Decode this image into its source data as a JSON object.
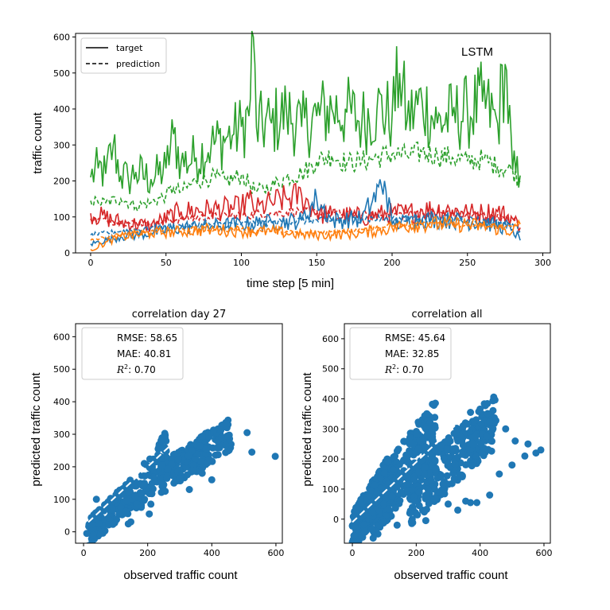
{
  "chart_data": [
    {
      "type": "line",
      "title": "LSTM",
      "xlabel": "time step [5 min]",
      "ylabel": "traffic count",
      "xlim": [
        -10,
        305
      ],
      "ylim": [
        0,
        610
      ],
      "xticks": [
        0,
        50,
        100,
        150,
        200,
        250,
        300
      ],
      "yticks": [
        0,
        100,
        200,
        300,
        400,
        500,
        600
      ],
      "legend": {
        "position": "top-left",
        "entries": [
          {
            "label": "target",
            "style": "solid"
          },
          {
            "label": "prediction",
            "style": "dashed"
          }
        ]
      },
      "colors": {
        "blue": "#1f77b4",
        "orange": "#ff7f0e",
        "green": "#2ca02c",
        "red": "#d62728"
      },
      "series": [
        {
          "name": "green target",
          "color": "#2ca02c",
          "style": "solid",
          "x": [
            0,
            5,
            10,
            15,
            20,
            25,
            30,
            40,
            50,
            55,
            60,
            70,
            80,
            90,
            95,
            100,
            105,
            108,
            110,
            120,
            130,
            140,
            150,
            160,
            170,
            180,
            190,
            200,
            205,
            210,
            220,
            230,
            240,
            250,
            260,
            270,
            275,
            280,
            285
          ],
          "y": [
            210,
            235,
            220,
            300,
            215,
            205,
            225,
            205,
            235,
            330,
            250,
            265,
            300,
            320,
            330,
            350,
            380,
            600,
            350,
            360,
            390,
            350,
            380,
            400,
            390,
            365,
            400,
            380,
            500,
            370,
            420,
            360,
            380,
            390,
            420,
            360,
            525,
            230,
            215
          ]
        },
        {
          "name": "green prediction",
          "color": "#2ca02c",
          "style": "dashed",
          "x": [
            0,
            5,
            10,
            20,
            30,
            40,
            50,
            55,
            60,
            70,
            80,
            90,
            100,
            110,
            120,
            130,
            140,
            150,
            160,
            170,
            180,
            190,
            200,
            210,
            220,
            230,
            240,
            250,
            260,
            270,
            280,
            285
          ],
          "y": [
            145,
            140,
            140,
            150,
            130,
            140,
            160,
            180,
            170,
            200,
            210,
            200,
            215,
            170,
            185,
            210,
            220,
            255,
            270,
            250,
            255,
            265,
            275,
            270,
            280,
            270,
            265,
            255,
            260,
            240,
            230,
            195
          ]
        },
        {
          "name": "red target",
          "color": "#d62728",
          "style": "solid",
          "x": [
            0,
            20,
            40,
            60,
            80,
            100,
            105,
            110,
            120,
            130,
            140,
            150,
            160,
            180,
            200,
            210,
            220,
            240,
            250,
            260,
            270,
            280,
            285
          ],
          "y": [
            110,
            85,
            75,
            115,
            120,
            125,
            150,
            120,
            140,
            150,
            160,
            110,
            105,
            100,
            110,
            110,
            120,
            120,
            110,
            110,
            115,
            95,
            70
          ]
        },
        {
          "name": "red prediction",
          "color": "#d62728",
          "style": "dashed",
          "x": [
            0,
            20,
            40,
            60,
            80,
            100,
            120,
            140,
            160,
            180,
            200,
            220,
            240,
            260,
            280,
            285
          ],
          "y": [
            95,
            85,
            80,
            95,
            100,
            105,
            110,
            115,
            110,
            105,
            105,
            110,
            110,
            105,
            90,
            75
          ]
        },
        {
          "name": "blue target",
          "color": "#1f77b4",
          "style": "solid",
          "x": [
            0,
            20,
            40,
            60,
            80,
            100,
            120,
            140,
            150,
            160,
            180,
            195,
            200,
            220,
            240,
            260,
            280,
            285
          ],
          "y": [
            25,
            45,
            55,
            70,
            75,
            80,
            85,
            90,
            150,
            90,
            95,
            200,
            80,
            95,
            90,
            85,
            65,
            35
          ]
        },
        {
          "name": "blue prediction",
          "color": "#1f77b4",
          "style": "dashed",
          "x": [
            0,
            20,
            40,
            60,
            80,
            100,
            120,
            140,
            160,
            180,
            200,
            220,
            240,
            260,
            280,
            285
          ],
          "y": [
            50,
            60,
            70,
            75,
            80,
            80,
            85,
            90,
            90,
            95,
            95,
            95,
            95,
            90,
            80,
            60
          ]
        },
        {
          "name": "orange target",
          "color": "#ff7f0e",
          "style": "solid",
          "x": [
            0,
            20,
            40,
            60,
            80,
            100,
            120,
            140,
            160,
            180,
            200,
            220,
            240,
            260,
            280,
            285
          ],
          "y": [
            10,
            45,
            55,
            60,
            65,
            60,
            60,
            50,
            50,
            55,
            70,
            80,
            80,
            75,
            60,
            80
          ]
        },
        {
          "name": "orange prediction",
          "color": "#ff7f0e",
          "style": "dashed",
          "x": [
            0,
            20,
            40,
            60,
            80,
            100,
            120,
            140,
            160,
            180,
            200,
            220,
            240,
            260,
            280,
            285
          ],
          "y": [
            35,
            50,
            60,
            65,
            65,
            65,
            60,
            55,
            60,
            65,
            75,
            80,
            80,
            75,
            70,
            85
          ]
        }
      ]
    },
    {
      "type": "scatter",
      "title": "correlation day 27",
      "xlabel": "observed traffic count",
      "ylabel": "predicted traffic count",
      "xlim": [
        -25,
        620
      ],
      "ylim": [
        -35,
        640
      ],
      "xticks": [
        0,
        200,
        400,
        600
      ],
      "yticks": [
        0,
        100,
        200,
        300,
        400,
        500,
        600
      ],
      "stats": {
        "rmse": "RMSE: 58.65",
        "mae": "MAE: 40.81",
        "r2_label": "R",
        "r2_value": ": 0.70"
      },
      "fit_line": {
        "x": [
          15,
          330
        ],
        "y": [
          30,
          320
        ]
      },
      "clusters": [
        {
          "x_range": [
            15,
            150
          ],
          "y_range": [
            -5,
            120
          ],
          "count": 160
        },
        {
          "x_range": [
            130,
            260
          ],
          "y_range": [
            60,
            250
          ],
          "count": 110
        },
        {
          "x_range": [
            240,
            460
          ],
          "y_range": [
            160,
            305
          ],
          "count": 190
        }
      ],
      "points": [
        [
          10,
          -5
        ],
        [
          30,
          -10
        ],
        [
          40,
          100
        ],
        [
          120,
          120
        ],
        [
          160,
          110
        ],
        [
          180,
          75
        ],
        [
          190,
          100
        ],
        [
          205,
          55
        ],
        [
          210,
          85
        ],
        [
          250,
          145
        ],
        [
          300,
          165
        ],
        [
          330,
          130
        ],
        [
          370,
          180
        ],
        [
          400,
          160
        ],
        [
          430,
          290
        ],
        [
          510,
          305
        ],
        [
          525,
          245
        ],
        [
          598,
          232
        ]
      ]
    },
    {
      "type": "scatter",
      "title": "correlation all",
      "xlabel": "observed traffic count",
      "ylabel": "predicted traffic count",
      "xlim": [
        -25,
        620
      ],
      "ylim": [
        -80,
        650
      ],
      "xticks": [
        0,
        200,
        400,
        600
      ],
      "yticks": [
        0,
        100,
        200,
        300,
        400,
        500,
        600
      ],
      "stats": {
        "rmse": "RMSE: 45.64",
        "mae": "MAE: 32.85",
        "r2_label": "R",
        "r2_value": ": 0.70"
      },
      "fit_line": {
        "x": [
          0,
          360
        ],
        "y": [
          -10,
          350
        ]
      },
      "clusters": [
        {
          "x_range": [
            0,
            120
          ],
          "y_range": [
            -45,
            150
          ],
          "count": 300
        },
        {
          "x_range": [
            60,
            260
          ],
          "y_range": [
            20,
            300
          ],
          "count": 320
        },
        {
          "x_range": [
            180,
            450
          ],
          "y_range": [
            70,
            330
          ],
          "count": 300
        }
      ],
      "points": [
        [
          5,
          -55
        ],
        [
          140,
          -20
        ],
        [
          180,
          20
        ],
        [
          230,
          -5
        ],
        [
          260,
          70
        ],
        [
          300,
          50
        ],
        [
          330,
          30
        ],
        [
          355,
          60
        ],
        [
          370,
          55
        ],
        [
          390,
          55
        ],
        [
          430,
          80
        ],
        [
          460,
          150
        ],
        [
          500,
          180
        ],
        [
          510,
          260
        ],
        [
          540,
          210
        ],
        [
          550,
          250
        ],
        [
          575,
          220
        ],
        [
          590,
          230
        ],
        [
          370,
          355
        ],
        [
          480,
          300
        ]
      ]
    }
  ]
}
